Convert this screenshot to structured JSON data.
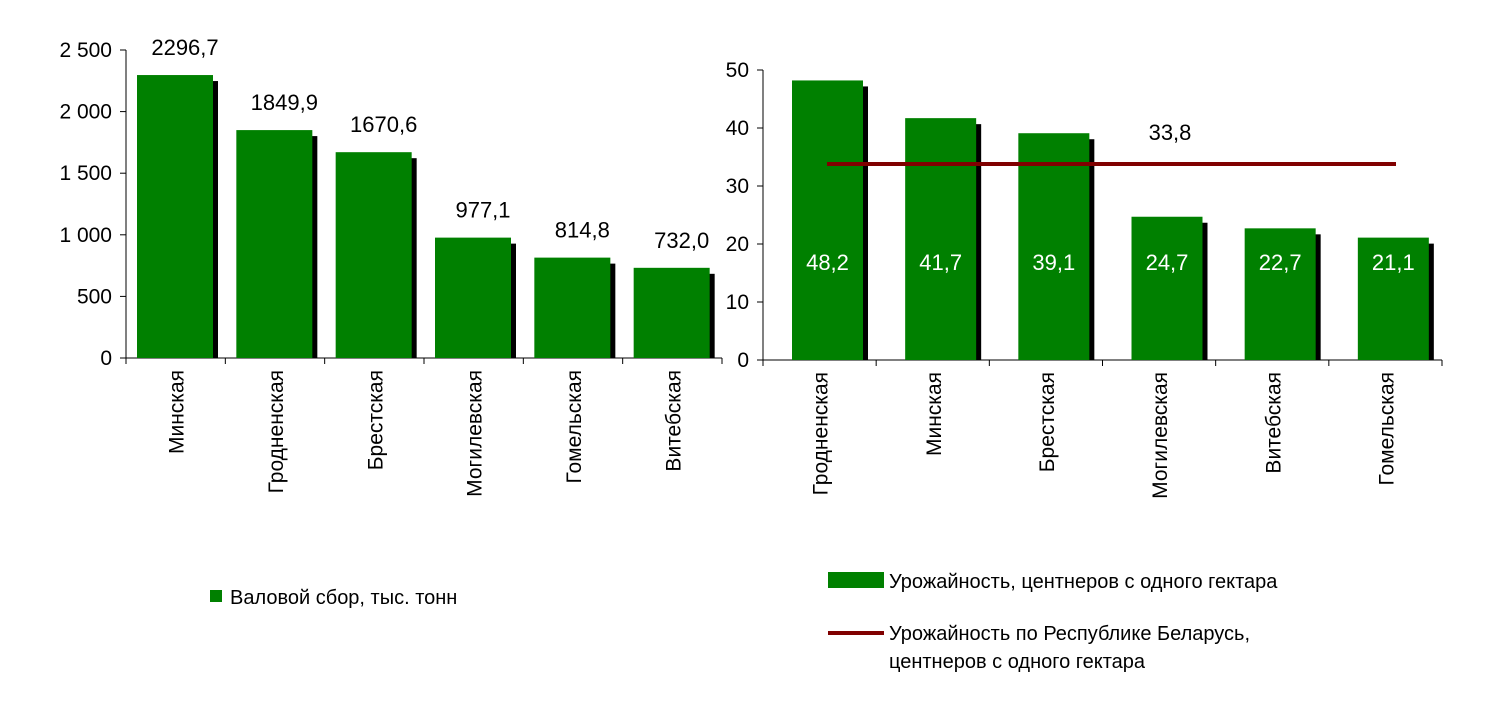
{
  "colors": {
    "bar": "#008000",
    "bar_shadow": "#000000",
    "avg_line": "#800000",
    "axis": "#000000",
    "inner_label": "#ffffff"
  },
  "chart_data": [
    {
      "type": "bar",
      "categories": [
        "Минская",
        "Гродненская",
        "Брестская",
        "Могилевская",
        "Гомельская",
        "Витебская"
      ],
      "series": [
        {
          "name": "Валовой сбор, тыс. тонн",
          "values": [
            2296.7,
            1849.9,
            1670.6,
            977.1,
            814.8,
            732.0
          ]
        }
      ],
      "value_labels": [
        "2296,7",
        "1849,9",
        "1670,6",
        "977,1",
        "814,8",
        "732,0"
      ],
      "ylim": [
        0,
        2500
      ],
      "yticks": [
        0,
        500,
        1000,
        1500,
        2000,
        2500
      ],
      "ytick_labels": [
        "0",
        "500",
        "1 000",
        "1 500",
        "2 000",
        "2 500"
      ],
      "legend": {
        "placement": "bottom",
        "entries": [
          "Валовой сбор, тыс. тонн"
        ]
      },
      "grid": false
    },
    {
      "type": "bar",
      "categories": [
        "Гродненская",
        "Минская",
        "Брестская",
        "Могилевская",
        "Витебская",
        "Гомельская"
      ],
      "series": [
        {
          "name": "Урожайность, центнеров с одного гектара",
          "values": [
            48.2,
            41.7,
            39.1,
            24.7,
            22.7,
            21.1
          ]
        },
        {
          "name": "Урожайность по Республике Беларусь, центнеров с одного гектара",
          "type": "line",
          "value": 33.8
        }
      ],
      "value_labels": [
        "48,2",
        "41,7",
        "39,1",
        "24,7",
        "22,7",
        "21,1"
      ],
      "avg_label": "33,8",
      "ylim": [
        0,
        50
      ],
      "yticks": [
        0,
        10,
        20,
        30,
        40,
        50
      ],
      "ytick_labels": [
        "0",
        "10",
        "20",
        "30",
        "40",
        "50"
      ],
      "legend": {
        "placement": "bottom",
        "entries": [
          [
            "Урожайность, центнеров с одного гектара"
          ],
          [
            "Урожайность по Республике Беларусь,",
            "центнеров с одного гектара"
          ]
        ]
      },
      "grid": false
    }
  ]
}
